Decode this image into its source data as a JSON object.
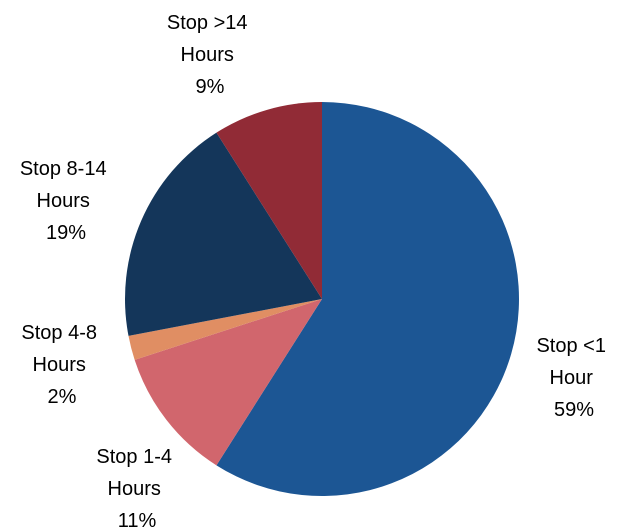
{
  "chart_data": {
    "type": "pie",
    "title": "",
    "start_angle_deg": 0,
    "direction": "clockwise",
    "slices": [
      {
        "label_lines": [
          "Stop <1",
          "Hour",
          "59%"
        ],
        "category": "Stop <1 Hour",
        "value": 59,
        "color": "#1C5694"
      },
      {
        "label_lines": [
          "Stop 1-4",
          "Hours",
          "11%"
        ],
        "category": "Stop 1-4 Hours",
        "value": 11,
        "color": "#D1666D"
      },
      {
        "label_lines": [
          "Stop 4-8",
          "Hours",
          "2%"
        ],
        "category": "Stop 4-8 Hours",
        "value": 2,
        "color": "#E08E63"
      },
      {
        "label_lines": [
          "Stop 8-14",
          "Hours",
          "19%"
        ],
        "category": "Stop 8-14 Hours",
        "value": 19,
        "color": "#14365A"
      },
      {
        "label_lines": [
          "Stop >14",
          "Hours",
          "9%"
        ],
        "category": "Stop >14 Hours",
        "value": 9,
        "color": "#912B36"
      }
    ]
  }
}
